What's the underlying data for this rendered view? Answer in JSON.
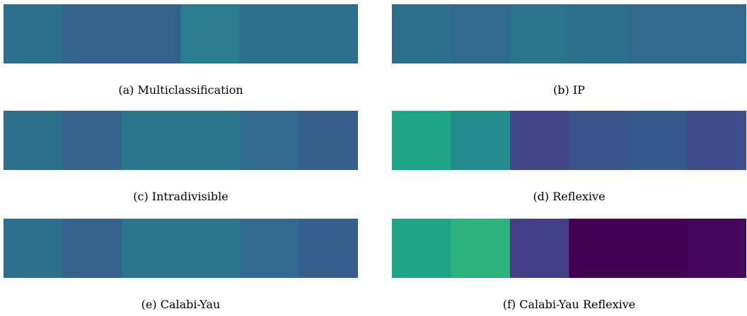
{
  "chart_data": [
    {
      "type": "heatmap",
      "caption": "(a) Multiclassification",
      "cells": [
        "#2e6f8e",
        "#33638d",
        "#33638d",
        "#287c8e",
        "#2e6f8e",
        "#2e6f8e"
      ]
    },
    {
      "type": "heatmap",
      "caption": "(b) IP",
      "cells": [
        "#2e6f8e",
        "#306a8e",
        "#2b758e",
        "#2e6f8e",
        "#306a8e",
        "#306a8e"
      ]
    },
    {
      "type": "heatmap",
      "caption": "(c) Intradivisible",
      "cells": [
        "#2e6f8e",
        "#33638d",
        "#2b758e",
        "#2b758e",
        "#306a8e",
        "#355f8d"
      ]
    },
    {
      "type": "heatmap",
      "caption": "(d) Reflexive",
      "cells": [
        "#20a386",
        "#238a8d",
        "#404688",
        "#3b528b",
        "#375a8c",
        "#3f4c8a"
      ]
    },
    {
      "type": "heatmap",
      "caption": "(e) Calabi-Yau",
      "cells": [
        "#2e6f8e",
        "#33638d",
        "#2b758e",
        "#2b758e",
        "#306a8e",
        "#355f8d"
      ]
    },
    {
      "type": "heatmap",
      "caption": "(f) Calabi-Yau Reflexive",
      "cells": [
        "#20a386",
        "#2db27d",
        "#433e85",
        "#440154",
        "#440154",
        "#46085c"
      ]
    }
  ]
}
